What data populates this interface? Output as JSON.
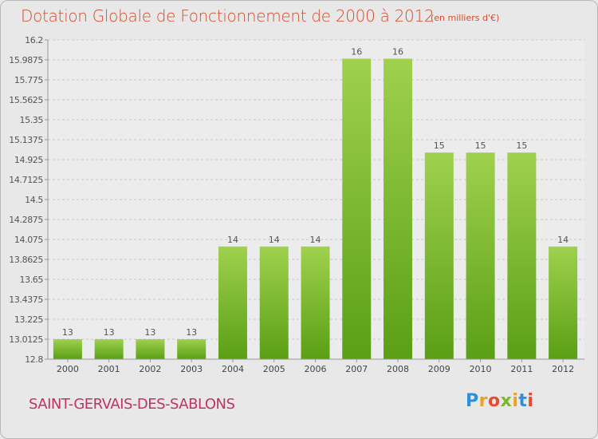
{
  "header": {
    "title": "Dotation Globale de Fonctionnement de 2000 à 2012",
    "unit": "(en milliers d'€)"
  },
  "footer": {
    "commune": "SAINT-GERVAIS-DES-SABLONS",
    "logo": "Proxiti"
  },
  "colors": {
    "bar_top": "#9fd14e",
    "bar_bottom": "#5a9f16",
    "title": "#d14d2e",
    "commune": "#c0345e"
  },
  "chart_data": {
    "type": "bar",
    "categories": [
      "2000",
      "2001",
      "2002",
      "2003",
      "2004",
      "2005",
      "2006",
      "2007",
      "2008",
      "2009",
      "2010",
      "2011",
      "2012"
    ],
    "values": [
      13.0125,
      13.0125,
      13.0125,
      13.0125,
      14.0,
      14.0,
      14.0,
      16.0,
      16.0,
      15.0,
      15.0,
      15.0,
      14.0
    ],
    "data_labels": [
      "13",
      "13",
      "13",
      "13",
      "14",
      "14",
      "14",
      "16",
      "16",
      "15",
      "15",
      "15",
      "14"
    ],
    "ylim": [
      12.8,
      16.2
    ],
    "yticks": [
      "12.8",
      "13.0125",
      "13.225",
      "13.4375",
      "13.65",
      "13.8625",
      "14.075",
      "14.2875",
      "14.5",
      "14.7125",
      "14.925",
      "15.1375",
      "15.35",
      "15.5625",
      "15.775",
      "15.9875",
      "16.2"
    ],
    "grid": true,
    "title": "Dotation Globale de Fonctionnement de 2000 à 2012",
    "xlabel": "",
    "ylabel": ""
  }
}
